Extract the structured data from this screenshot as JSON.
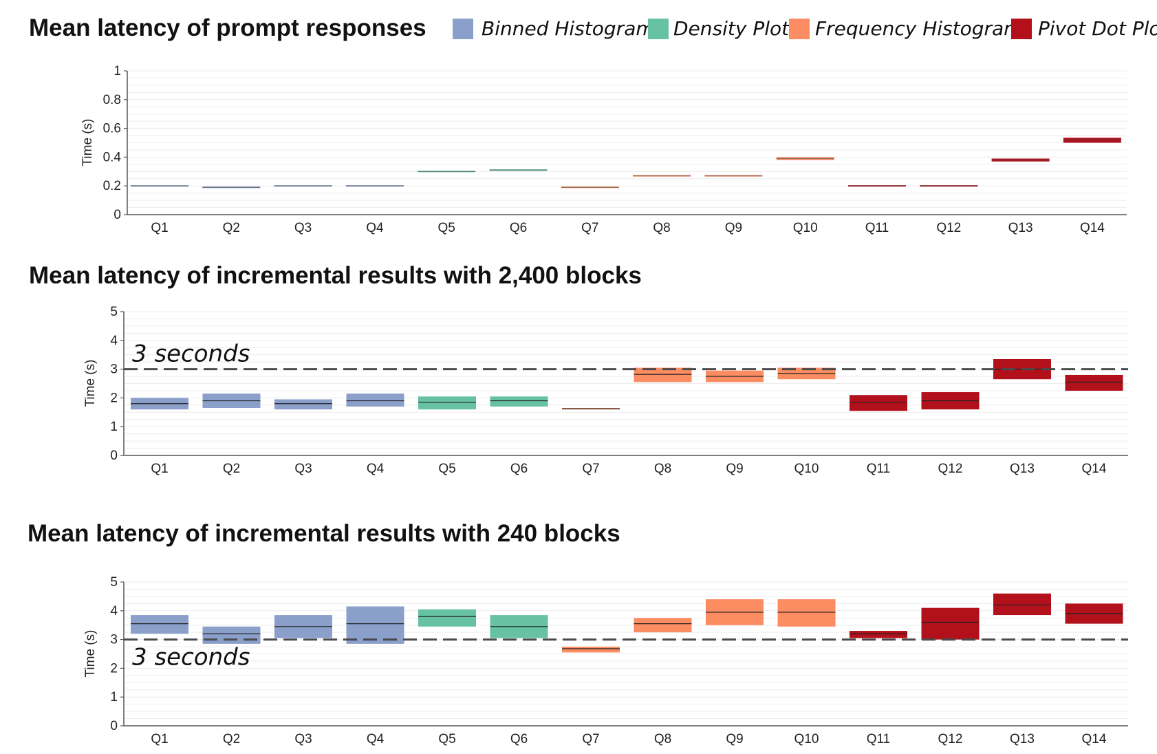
{
  "legend": [
    {
      "label": "Binned Histogram",
      "color": "#8b9fcb"
    },
    {
      "label": "Density Plot",
      "color": "#67c2a3"
    },
    {
      "label": "Frequency Histogram",
      "color": "#fc8d62"
    },
    {
      "label": "Pivot Dot Plot",
      "color": "#b2111c"
    }
  ],
  "chart_data": [
    {
      "type": "bar",
      "title": "Mean latency of prompt responses",
      "ylabel": "Time (s)",
      "ylim": [
        0,
        1
      ],
      "yticks": [
        "0",
        "0.2",
        "0.4",
        "0.6",
        "0.8",
        "1"
      ],
      "categories": [
        "Q1",
        "Q2",
        "Q3",
        "Q4",
        "Q5",
        "Q6",
        "Q7",
        "Q8",
        "Q9",
        "Q10",
        "Q11",
        "Q12",
        "Q13",
        "Q14"
      ],
      "series_index": [
        0,
        0,
        0,
        0,
        1,
        1,
        2,
        2,
        2,
        2,
        3,
        3,
        3,
        3
      ],
      "mean": [
        0.2,
        0.19,
        0.2,
        0.2,
        0.3,
        0.31,
        0.19,
        0.27,
        0.27,
        0.39,
        0.2,
        0.2,
        0.38,
        0.52
      ],
      "low": [
        0.195,
        0.185,
        0.195,
        0.195,
        0.295,
        0.305,
        0.185,
        0.265,
        0.265,
        0.38,
        0.195,
        0.195,
        0.37,
        0.5
      ],
      "high": [
        0.205,
        0.195,
        0.205,
        0.205,
        0.305,
        0.315,
        0.195,
        0.275,
        0.275,
        0.4,
        0.205,
        0.205,
        0.39,
        0.535
      ],
      "grid": true
    },
    {
      "type": "bar",
      "title": "Mean latency of incremental results with 2,400 blocks",
      "ylabel": "Time (s)",
      "ylim": [
        0,
        5
      ],
      "yticks": [
        "0",
        "1",
        "2",
        "3",
        "4",
        "5"
      ],
      "categories": [
        "Q1",
        "Q2",
        "Q3",
        "Q4",
        "Q5",
        "Q6",
        "Q7",
        "Q8",
        "Q9",
        "Q10",
        "Q11",
        "Q12",
        "Q13",
        "Q14"
      ],
      "series_index": [
        0,
        0,
        0,
        0,
        1,
        1,
        2,
        2,
        2,
        2,
        3,
        3,
        3,
        3
      ],
      "mean": [
        1.8,
        1.9,
        1.8,
        1.9,
        1.85,
        1.9,
        1.62,
        2.82,
        2.75,
        2.85,
        1.85,
        1.9,
        3.0,
        2.55
      ],
      "low": [
        1.6,
        1.65,
        1.6,
        1.7,
        1.6,
        1.7,
        1.6,
        2.55,
        2.55,
        2.65,
        1.55,
        1.6,
        2.65,
        2.25
      ],
      "high": [
        2.0,
        2.15,
        1.95,
        2.15,
        2.05,
        2.05,
        1.65,
        3.05,
        2.95,
        3.05,
        2.1,
        2.2,
        3.35,
        2.8
      ],
      "reference": {
        "value": 3,
        "label": "3 seconds"
      },
      "grid": true
    },
    {
      "type": "bar",
      "title": "Mean latency of incremental results with 240 blocks",
      "ylabel": "Time (s)",
      "ylim": [
        0,
        5
      ],
      "yticks": [
        "0",
        "1",
        "2",
        "3",
        "4",
        "5"
      ],
      "categories": [
        "Q1",
        "Q2",
        "Q3",
        "Q4",
        "Q5",
        "Q6",
        "Q7",
        "Q8",
        "Q9",
        "Q10",
        "Q11",
        "Q12",
        "Q13",
        "Q14"
      ],
      "series_index": [
        0,
        0,
        0,
        0,
        1,
        1,
        2,
        2,
        2,
        2,
        3,
        3,
        3,
        3
      ],
      "mean": [
        3.55,
        3.2,
        3.45,
        3.55,
        3.8,
        3.45,
        2.68,
        3.55,
        3.95,
        3.95,
        3.2,
        3.6,
        4.2,
        3.9
      ],
      "low": [
        3.2,
        2.85,
        3.05,
        2.85,
        3.45,
        3.05,
        2.55,
        3.25,
        3.5,
        3.45,
        3.05,
        3.0,
        3.85,
        3.55
      ],
      "high": [
        3.85,
        3.45,
        3.85,
        4.15,
        4.05,
        3.85,
        2.75,
        3.75,
        4.4,
        4.4,
        3.3,
        4.1,
        4.6,
        4.25
      ],
      "reference": {
        "value": 3,
        "label": "3 seconds"
      },
      "grid": true
    }
  ]
}
